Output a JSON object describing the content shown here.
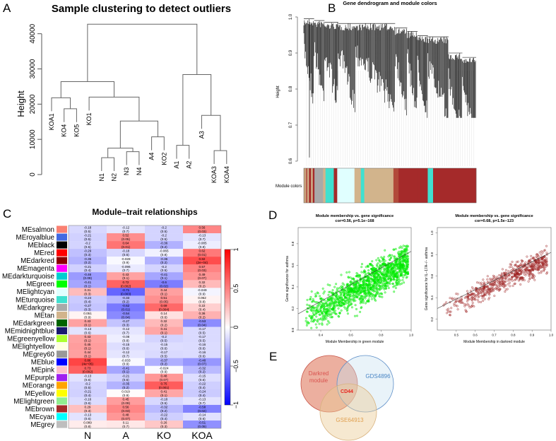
{
  "panels": {
    "a": "A",
    "b": "B",
    "c": "C",
    "d": "D",
    "e": "E"
  },
  "chart_data": [
    {
      "type": "dendrogram",
      "title": "Sample clustering to detect outliers",
      "ylabel": "Height",
      "ylim": [
        0,
        40000
      ],
      "yticks": [
        "0",
        "10000",
        "20000",
        "30000",
        "40000"
      ],
      "leaves": [
        "KOA1",
        "KO4",
        "KO5",
        "KO1",
        "N1",
        "N2",
        "N3",
        "N4",
        "A4",
        "KO2",
        "A1",
        "A2",
        "A3",
        "KOA3",
        "KOA4"
      ],
      "hang": 3800,
      "merges": [
        {
          "a": "KO4",
          "b": "KO5",
          "h": 18700,
          "id": "m1"
        },
        {
          "a": "KOA1",
          "b": "m1",
          "h": 21800,
          "id": "m2"
        },
        {
          "a": "N1",
          "b": "N2",
          "h": 4800,
          "id": "m3"
        },
        {
          "a": "N3",
          "b": "N4",
          "h": 6500,
          "id": "m4"
        },
        {
          "a": "m3",
          "b": "m4",
          "h": 7500,
          "id": "m5"
        },
        {
          "a": "A4",
          "b": "KO2",
          "h": 10700,
          "id": "m6"
        },
        {
          "a": "m5",
          "b": "m6",
          "h": 15200,
          "id": "m7"
        },
        {
          "a": "KO1",
          "b": "m7",
          "h": 22000,
          "id": "m8"
        },
        {
          "a": "m2",
          "b": "m8",
          "h": 26400,
          "id": "m9"
        },
        {
          "a": "A1",
          "b": "A2",
          "h": 8300,
          "id": "m10"
        },
        {
          "a": "KOA3",
          "b": "KOA4",
          "h": 6800,
          "id": "m11"
        },
        {
          "a": "A3",
          "b": "m11",
          "h": 16800,
          "id": "m12"
        },
        {
          "a": "m10",
          "b": "m12",
          "h": 28400,
          "id": "m13"
        },
        {
          "a": "m9",
          "b": "m13",
          "h": 42700,
          "id": "root"
        }
      ]
    },
    {
      "type": "dendrogram",
      "title": "Gene dendrogram and module colors",
      "ylabel": "Height",
      "ylim": [
        0.6,
        1.0
      ],
      "yticks": [
        "0.6",
        "0.7",
        "0.8",
        "0.9",
        "1.0"
      ],
      "colorbar_label": "Module colors",
      "module_segments": [
        {
          "color": "#C8A07A",
          "share": 0.015
        },
        {
          "color": "#A52A2A",
          "share": 0.005
        },
        {
          "color": "#D2B48C",
          "share": 0.01
        },
        {
          "color": "#A52A2A",
          "share": 0.012
        },
        {
          "color": "#D2B48C",
          "share": 0.01
        },
        {
          "color": "#A52A2A",
          "share": 0.01
        },
        {
          "color": "#A9A9A9",
          "share": 0.05
        },
        {
          "color": "#D2B48C",
          "share": 0.014
        },
        {
          "color": "#40E0D0",
          "share": 0.048
        },
        {
          "color": "#A52A2A",
          "share": 0.02
        },
        {
          "color": "#E0FFFF",
          "share": 0.1
        },
        {
          "color": "#D2B48C",
          "share": 0.037
        },
        {
          "color": "#40E0D0",
          "share": 0.02
        },
        {
          "color": "#D2B48C",
          "share": 0.169
        },
        {
          "color": "#B24A3A",
          "share": 0.03
        },
        {
          "color": "#A52A2A",
          "share": 0.107
        },
        {
          "color": "#A52A2A",
          "share": 0.062
        },
        {
          "color": "#40E0D0",
          "share": 0.031
        },
        {
          "color": "#A52A2A",
          "share": 0.25
        }
      ]
    },
    {
      "type": "heatmap",
      "title": "Module–trait relationships",
      "columns": [
        "N",
        "A",
        "KO",
        "KOA"
      ],
      "colorbar_ticks": [
        "1",
        "0.5",
        "0",
        "−0.5",
        "−1"
      ],
      "range": [
        -1,
        1
      ],
      "rows": [
        {
          "name": "MEsalmon",
          "color": "#FA8072",
          "r": [
            -0.18,
            -0.12,
            -0.2,
            0.56
          ],
          "p": [
            "0.5",
            "0.7",
            "0.5",
            "0.03"
          ]
        },
        {
          "name": "MEroyalblue",
          "color": "#4169E1",
          "r": [
            -0.21,
            0.52,
            -0.2,
            -0.13
          ],
          "p": [
            "0.5",
            "0.05",
            "0.5",
            "0.7"
          ]
        },
        {
          "name": "MEblack",
          "color": "#000000",
          "r": [
            -0.2,
            0.64,
            -0.36,
            -0.085
          ],
          "p": [
            "0.5",
            "0.01",
            "0.2",
            "0.8"
          ]
        },
        {
          "name": "MEred",
          "color": "#FF0000",
          "r": [
            -0.29,
            -0.18,
            -0.065,
            0.62
          ],
          "p": [
            "0.3",
            "0.5",
            "0.8",
            "0.01"
          ]
        },
        {
          "name": "MEdarkred",
          "color": "#8B0000",
          "r": [
            -0.35,
            -0.028,
            -0.36,
            0.82
          ],
          "p": [
            "0.2",
            "0.9",
            "0.2",
            "2e−04"
          ]
        },
        {
          "name": "MEmagenta",
          "color": "#FF00FF",
          "r": [
            -0.21,
            -0.096,
            -0.2,
            0.57
          ],
          "p": [
            "0.4",
            "0.7",
            "0.5",
            "0.03"
          ]
        },
        {
          "name": "MEdarkturquoise",
          "color": "#00CED1",
          "r": [
            -0.46,
            0.43,
            -0.41,
            0.49
          ],
          "p": [
            "0.09",
            "0.1",
            "0.1",
            "0.07"
          ]
        },
        {
          "name": "MEgreen",
          "color": "#00FF00",
          "r": [
            -0.41,
            0.72,
            -0.6,
            0.32
          ],
          "p": [
            "0.1",
            "0.002",
            "0.02",
            "0.2"
          ]
        },
        {
          "name": "MElightcyan",
          "color": "#E0FFFF",
          "r": [
            0.31,
            -0.71,
            0.44,
            -0.049
          ],
          "p": [
            "0.3",
            "0.003",
            "0.1",
            "0.9"
          ]
        },
        {
          "name": "MEturquoise",
          "color": "#40E0D0",
          "r": [
            -0.24,
            -0.33,
            0.51,
            0.062
          ],
          "p": [
            "0.4",
            "0.2",
            "0.05",
            "0.8"
          ]
        },
        {
          "name": "MEdarkgrey",
          "color": "#A9A9A9",
          "r": [
            -0.27,
            -0.62,
            0.69,
            0.22
          ],
          "p": [
            "0.3",
            "0.01",
            "0.004",
            "0.4"
          ]
        },
        {
          "name": "MEtan",
          "color": "#D2B48C",
          "r": [
            0.051,
            -0.54,
            0.14,
            0.36
          ],
          "p": [
            "0.9",
            "0.04",
            "0.6",
            "0.2"
          ]
        },
        {
          "name": "MEdarkgreen",
          "color": "#006400",
          "r": [
            0.43,
            -0.27,
            0.32,
            -0.53
          ],
          "p": [
            "0.1",
            "0.3",
            "0.2",
            "0.04"
          ]
        },
        {
          "name": "MEmidnightblue",
          "color": "#191970",
          "r": [
            -0.13,
            -0.12,
            0.41,
            -0.17
          ],
          "p": [
            "0.6",
            "0.7",
            "0.1",
            "0.5"
          ]
        },
        {
          "name": "MEgreenyellow",
          "color": "#ADFF2F",
          "r": [
            0.43,
            -0.08,
            -0.2,
            -0.17
          ],
          "p": [
            "0.1",
            "0.8",
            "0.5",
            "0.5"
          ]
        },
        {
          "name": "MElightyellow",
          "color": "#FFFFE0",
          "r": [
            0.45,
            -0.15,
            -0.15,
            -0.16
          ],
          "p": [
            "0.1",
            "0.6",
            "0.6",
            "0.6"
          ]
        },
        {
          "name": "MEgrey60",
          "color": "#999999",
          "r": [
            0.44,
            -0.12,
            -0.17,
            -0.16
          ],
          "p": [
            "0.1",
            "0.7",
            "0.5",
            "0.6"
          ]
        },
        {
          "name": "MEblue",
          "color": "#0000FF",
          "r": [
            0.86,
            -0.033,
            -0.37,
            -0.48
          ],
          "p": [
            "4e−05",
            "0.9",
            "0.2",
            "0.07"
          ]
        },
        {
          "name": "MEpink",
          "color": "#FFC0CB",
          "r": [
            0.73,
            -0.41,
            -0.024,
            -0.32
          ],
          "p": [
            "0.002",
            "0.1",
            "0.9",
            "0.2"
          ]
        },
        {
          "name": "MEpurple",
          "color": "#A020F0",
          "r": [
            -0.13,
            -0.21,
            0.48,
            -0.15
          ],
          "p": [
            "0.6",
            "0.5",
            "0.07",
            "0.6"
          ]
        },
        {
          "name": "MEorange",
          "color": "#FFA500",
          "r": [
            -0.2,
            -0.35,
            0.75,
            -0.22
          ],
          "p": [
            "0.5",
            "0.2",
            "0.001",
            "0.4"
          ]
        },
        {
          "name": "MEyellow",
          "color": "#FFFF00",
          "r": [
            -0.21,
            0.019,
            0.41,
            -0.24
          ],
          "p": [
            "0.4",
            "0.9",
            "0.1",
            "0.4"
          ]
        },
        {
          "name": "MElightgreen",
          "color": "#90EE90",
          "r": [
            -0.16,
            0.45,
            -0.18,
            -0.13
          ],
          "p": [
            "0.6",
            "0.09",
            "0.5",
            "0.7"
          ]
        },
        {
          "name": "MEbrown",
          "color": "#A52A2A",
          "r": [
            0.29,
            0.56,
            -0.32,
            -0.58
          ],
          "p": [
            "0.3",
            "0.03",
            "0.2",
            "0.02"
          ]
        },
        {
          "name": "MEcyan",
          "color": "#00FFFF",
          "r": [
            -0.13,
            0.48,
            -0.22,
            -0.14
          ],
          "p": [
            "0.6",
            "0.07",
            "0.4",
            "0.6"
          ]
        },
        {
          "name": "MEgrey",
          "color": "#BEBEBE",
          "r": [
            0.089,
            0.11,
            0.26,
            -0.51
          ],
          "p": [
            "0.8",
            "0.7",
            "0.3",
            "0.05"
          ]
        }
      ]
    },
    {
      "type": "scatter",
      "title": "Module membership vs. gene significance",
      "subtitle": "cor=0.56, p=5.1e−168",
      "xlabel": "Module Membership in green module",
      "ylabel": "Gene significance for asthma",
      "xlim": [
        0.25,
        1.0
      ],
      "ylim": [
        0.0,
        0.95
      ],
      "xticks": [
        "0.4",
        "0.6",
        "0.8",
        "1.0"
      ],
      "yticks": [
        "0.0",
        "0.2",
        "0.4",
        "0.6",
        "0.8"
      ],
      "point_color": "#00FF00",
      "fit": {
        "x0": 0.25,
        "y0": 0.15,
        "x1": 1.0,
        "y1": 0.73
      }
    },
    {
      "type": "scatter",
      "title": "Module membership vs. gene significance",
      "subtitle": "cor=0.68, p=1.5e−123",
      "xlabel": "Module Membership in darkred module",
      "ylabel": "Gene significance for IL−17A−/− asthma",
      "xlim": [
        0.4,
        1.0
      ],
      "ylim": [
        0.1,
        1.05
      ],
      "xticks": [
        "0.5",
        "0.6",
        "0.7",
        "0.8",
        "0.9",
        "1.0"
      ],
      "yticks": [
        "0.2",
        "0.4",
        "0.6",
        "0.8",
        "1.0"
      ],
      "point_color": "#8B1A1A",
      "fit": {
        "x0": 0.4,
        "y0": 0.3,
        "x1": 1.0,
        "y1": 0.82
      }
    },
    {
      "type": "venn",
      "sets": [
        {
          "label": "Darkred module",
          "color": "#D9534F"
        },
        {
          "label": "GDS4896",
          "color": "#4A86C5"
        },
        {
          "label": "GSE64913",
          "color": "#E0A050"
        }
      ],
      "intersection": "CD44",
      "intersection_color": "#E8231F"
    }
  ]
}
